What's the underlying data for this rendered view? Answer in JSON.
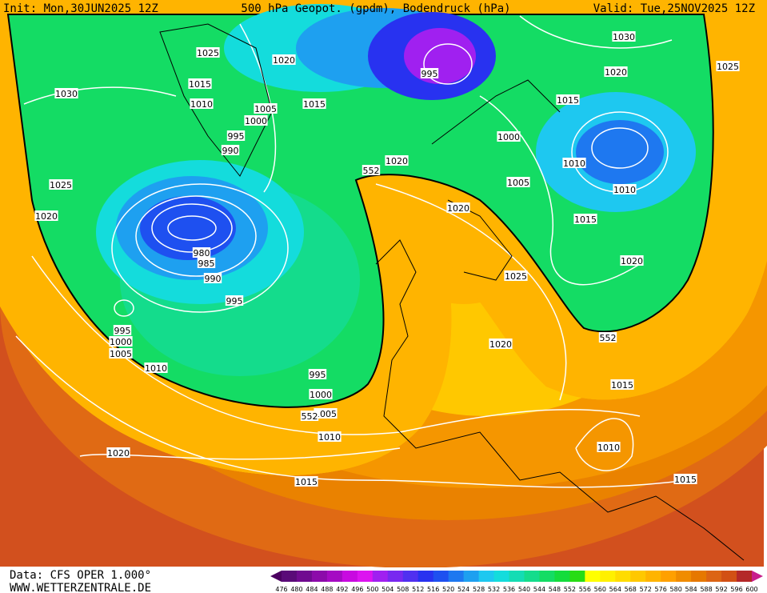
{
  "header": {
    "init": "Init: Mon,30JUN2025 12Z",
    "title": "500 hPa Geopot. (gpdm), Bodendruck (hPa)",
    "valid": "Valid: Tue,25NOV2025 12Z"
  },
  "footer": {
    "data": "Data: CFS OPER 1.000°",
    "site": "WWW.WETTERZENTRALE.DE"
  },
  "isobar_labels": [
    "1030",
    "1025",
    "1020",
    "995",
    "1020",
    "1025",
    "1015",
    "1030",
    "1010",
    "1005",
    "1015",
    "1015",
    "1000",
    "995",
    "1000",
    "990",
    "1020",
    "552",
    "1010",
    "1025",
    "1005",
    "1010",
    "1020",
    "1020",
    "1015",
    "980",
    "985",
    "1020",
    "1025",
    "990",
    "995",
    "995",
    "1000",
    "552",
    "1020",
    "1005",
    "1010",
    "995",
    "1015",
    "1000",
    "1005",
    "552",
    "1010",
    "1010",
    "1020",
    "1015",
    "1015"
  ],
  "colorbar": {
    "labels": [
      476,
      480,
      484,
      488,
      492,
      496,
      500,
      504,
      508,
      512,
      516,
      520,
      524,
      528,
      532,
      536,
      540,
      544,
      548,
      552,
      556,
      560,
      564,
      568,
      572,
      576,
      580,
      584,
      588,
      592,
      596,
      600
    ],
    "colors": [
      "#4b0060",
      "#5a0a78",
      "#700a90",
      "#8c0aaa",
      "#a50ac3",
      "#c80ae0",
      "#dc14f0",
      "#a020f0",
      "#7828f0",
      "#5030f0",
      "#2832f0",
      "#1e50f0",
      "#1e78f0",
      "#1ea0f0",
      "#1ec8f0",
      "#14dcdc",
      "#14dcb4",
      "#14dc8c",
      "#14dc64",
      "#14dc3c",
      "#28dc14",
      "#ffff00",
      "#fff000",
      "#ffdc00",
      "#ffc800",
      "#ffb400",
      "#ffa000",
      "#f08c00",
      "#e67800",
      "#dc6414",
      "#d25014",
      "#b42828",
      "#c81e8c"
    ]
  }
}
